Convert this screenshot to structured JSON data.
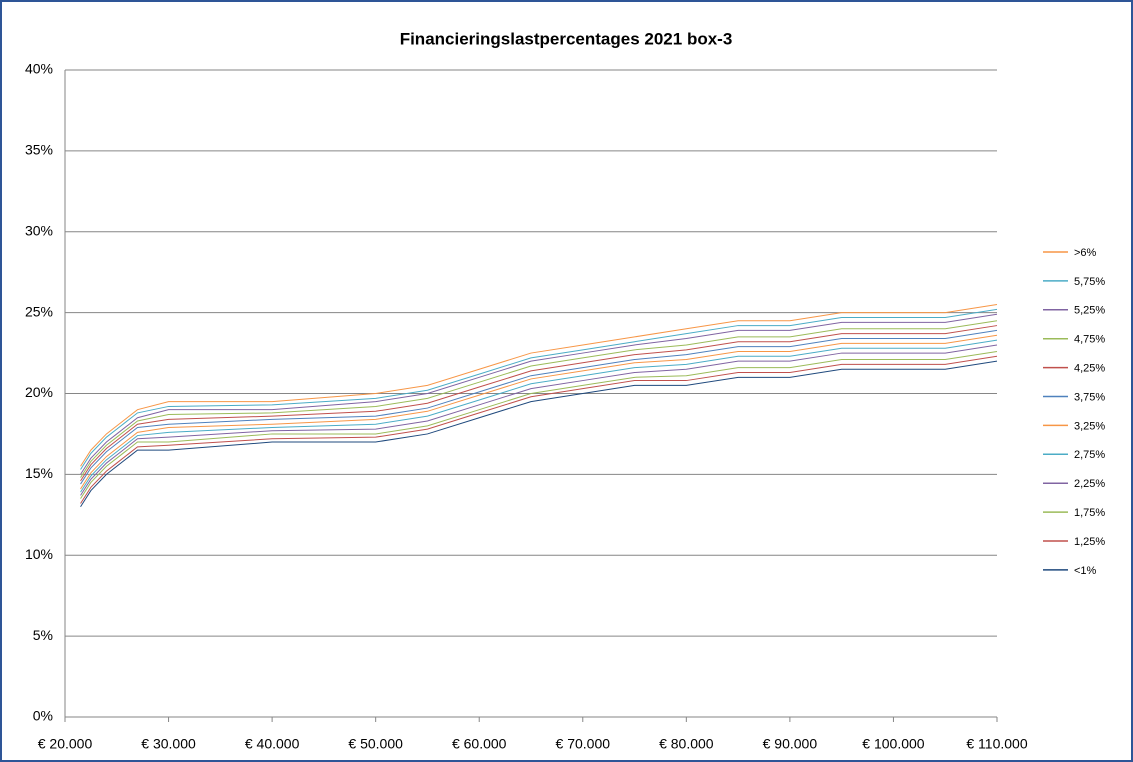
{
  "chart_data": {
    "type": "line",
    "title": "Financieringslastpercentages  2021 box-3",
    "x": [
      21500,
      22500,
      24000,
      25000,
      27000,
      30000,
      40000,
      50000,
      55000,
      60000,
      65000,
      70000,
      75000,
      80000,
      85000,
      90000,
      95000,
      100000,
      105000,
      110000
    ],
    "xlim": [
      20000,
      110000
    ],
    "xticks": [
      {
        "value": 20000,
        "label": "€ 20.000"
      },
      {
        "value": 30000,
        "label": "€ 30.000"
      },
      {
        "value": 40000,
        "label": "€ 40.000"
      },
      {
        "value": 50000,
        "label": "€ 50.000"
      },
      {
        "value": 60000,
        "label": "€ 60.000"
      },
      {
        "value": 70000,
        "label": "€ 70.000"
      },
      {
        "value": 80000,
        "label": "€ 80.000"
      },
      {
        "value": 90000,
        "label": "€ 90.000"
      },
      {
        "value": 100000,
        "label": "€ 100.000"
      },
      {
        "value": 110000,
        "label": "€ 110.000"
      }
    ],
    "ylim": [
      0,
      40
    ],
    "yticks": [
      {
        "value": 0,
        "label": "0%"
      },
      {
        "value": 5,
        "label": "5%"
      },
      {
        "value": 10,
        "label": "10%"
      },
      {
        "value": 15,
        "label": "15%"
      },
      {
        "value": 20,
        "label": "20%"
      },
      {
        "value": 25,
        "label": "25%"
      },
      {
        "value": 30,
        "label": "30%"
      },
      {
        "value": 35,
        "label": "35%"
      },
      {
        "value": 40,
        "label": "40%"
      }
    ],
    "grid": true,
    "legend": "right",
    "series": [
      {
        "name": ">6%",
        "color": "#f79646",
        "values": [
          15.5,
          16.5,
          17.5,
          18,
          19,
          19.5,
          19.5,
          20,
          20.5,
          21.5,
          22.5,
          23,
          23.5,
          24,
          24.5,
          24.5,
          25,
          25,
          25,
          25.5
        ]
      },
      {
        "name": "5,75%",
        "color": "#4bacc6",
        "values": [
          15.3,
          16.3,
          17.3,
          17.8,
          18.8,
          19.2,
          19.3,
          19.7,
          20.2,
          21.2,
          22.2,
          22.7,
          23.2,
          23.7,
          24.2,
          24.2,
          24.7,
          24.7,
          24.7,
          25.2
        ]
      },
      {
        "name": "5,25%",
        "color": "#8064a2",
        "values": [
          15,
          16,
          17,
          17.5,
          18.5,
          19,
          19,
          19.5,
          20,
          21,
          22,
          22.5,
          23,
          23.4,
          23.9,
          23.9,
          24.4,
          24.4,
          24.4,
          24.9
        ]
      },
      {
        "name": "4,75%",
        "color": "#9bbb59",
        "values": [
          14.8,
          15.8,
          16.8,
          17.3,
          18.3,
          18.7,
          18.8,
          19.2,
          19.7,
          20.7,
          21.7,
          22.2,
          22.7,
          23,
          23.5,
          23.5,
          24,
          24,
          24,
          24.5
        ]
      },
      {
        "name": "4,25%",
        "color": "#c0504d",
        "values": [
          14.6,
          15.6,
          16.6,
          17.1,
          18.1,
          18.4,
          18.6,
          18.9,
          19.4,
          20.4,
          21.4,
          21.9,
          22.4,
          22.7,
          23.2,
          23.2,
          23.7,
          23.7,
          23.7,
          24.2
        ]
      },
      {
        "name": "3,75%",
        "color": "#4f81bd",
        "values": [
          14.4,
          15.4,
          16.4,
          16.9,
          17.9,
          18.1,
          18.4,
          18.6,
          19.1,
          20.1,
          21.1,
          21.6,
          22.1,
          22.4,
          22.9,
          22.9,
          23.4,
          23.4,
          23.4,
          23.9
        ]
      },
      {
        "name": "3,25%",
        "color": "#f79646",
        "values": [
          14.1,
          15.1,
          16.1,
          16.6,
          17.6,
          17.9,
          18.1,
          18.4,
          18.9,
          19.9,
          20.9,
          21.4,
          21.9,
          22.1,
          22.6,
          22.6,
          23.1,
          23.1,
          23.1,
          23.6
        ]
      },
      {
        "name": "2,75%",
        "color": "#4bacc6",
        "values": [
          13.9,
          14.9,
          15.9,
          16.4,
          17.4,
          17.6,
          17.9,
          18.1,
          18.6,
          19.6,
          20.6,
          21.1,
          21.6,
          21.8,
          22.3,
          22.3,
          22.8,
          22.8,
          22.8,
          23.3
        ]
      },
      {
        "name": "2,25%",
        "color": "#8064a2",
        "values": [
          13.7,
          14.7,
          15.7,
          16.2,
          17.2,
          17.3,
          17.7,
          17.8,
          18.3,
          19.3,
          20.3,
          20.8,
          21.3,
          21.5,
          22,
          22,
          22.5,
          22.5,
          22.5,
          23
        ]
      },
      {
        "name": "1,75%",
        "color": "#9bbb59",
        "values": [
          13.5,
          14.5,
          15.5,
          16,
          17,
          17,
          17.5,
          17.5,
          18,
          19,
          20,
          20.5,
          21,
          21.1,
          21.6,
          21.6,
          22.1,
          22.1,
          22.1,
          22.6
        ]
      },
      {
        "name": "1,25%",
        "color": "#c0504d",
        "values": [
          13.2,
          14.2,
          15.2,
          15.7,
          16.7,
          16.8,
          17.2,
          17.3,
          17.8,
          18.8,
          19.8,
          20.3,
          20.8,
          20.8,
          21.3,
          21.3,
          21.8,
          21.8,
          21.8,
          22.3
        ]
      },
      {
        "name": "<1%",
        "color": "#1f497d",
        "values": [
          13,
          14,
          15,
          15.5,
          16.5,
          16.5,
          17,
          17,
          17.5,
          18.5,
          19.5,
          20,
          20.5,
          20.5,
          21,
          21,
          21.5,
          21.5,
          21.5,
          22
        ]
      }
    ]
  }
}
